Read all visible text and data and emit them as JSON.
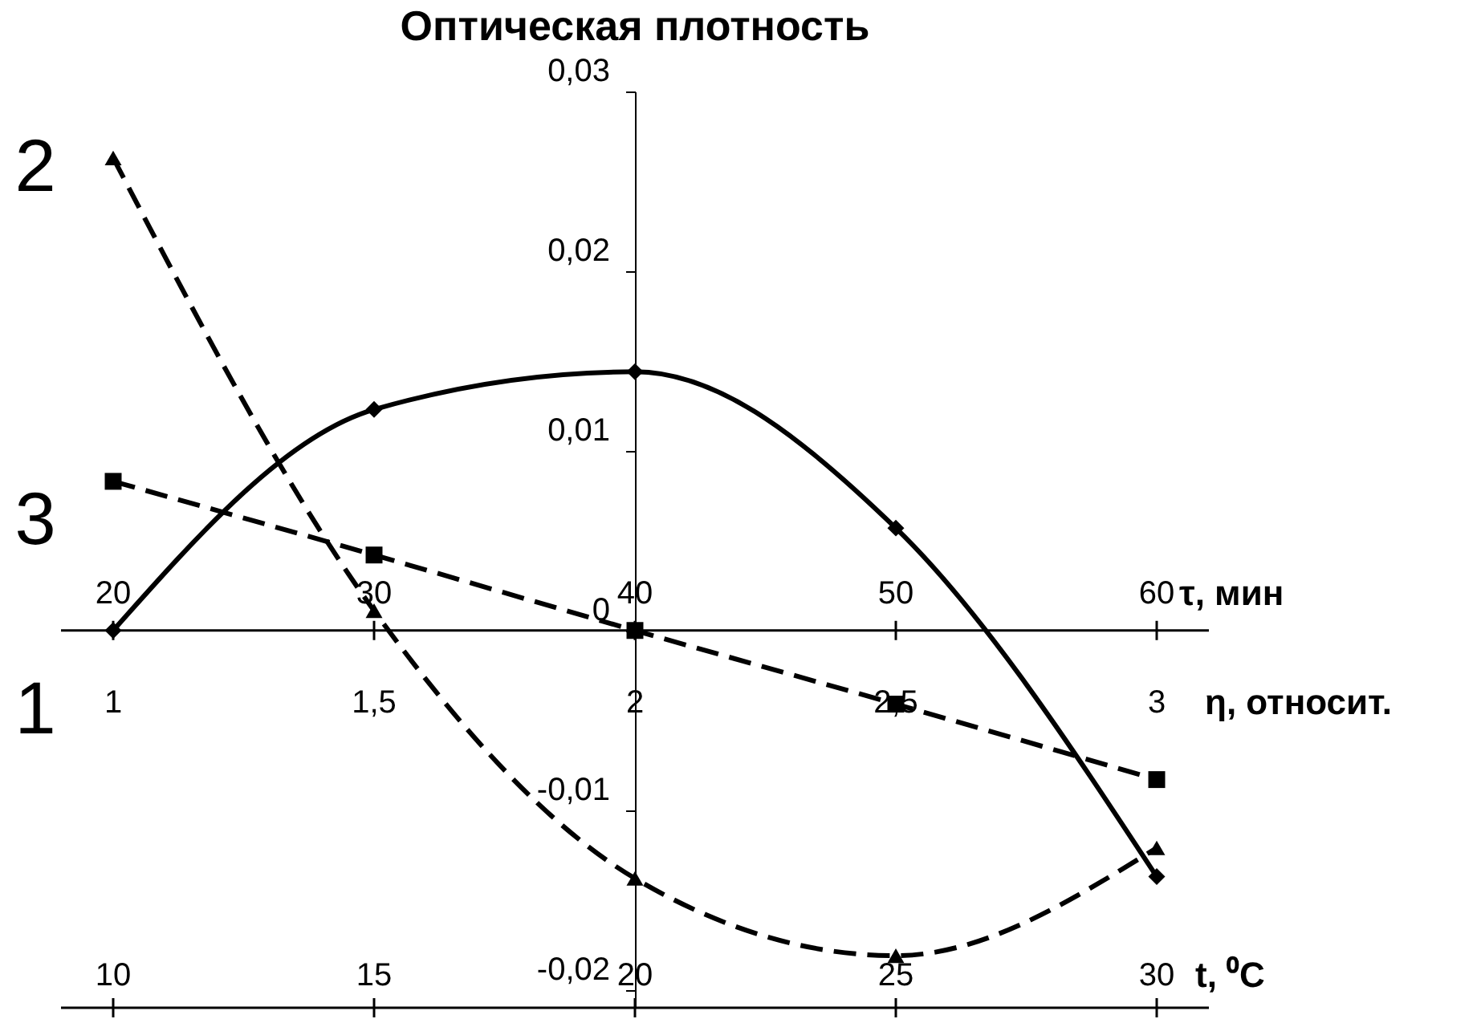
{
  "chart_data": {
    "type": "line",
    "title": "Оптическая плотность",
    "x": [
      10,
      15,
      20,
      25,
      30
    ],
    "xlim": [
      9,
      31
    ],
    "xticks": [
      10,
      15,
      20,
      25,
      30
    ],
    "xlabel": "t, ⁰C",
    "x2lim": [
      18,
      62
    ],
    "x2ticks": [
      20,
      30,
      40,
      50,
      60
    ],
    "x2label": "τ, мин",
    "ylim": [
      -0.021,
      0.03
    ],
    "yticks": [
      {
        "value": 0.03,
        "label": "0,03"
      },
      {
        "value": 0.02,
        "label": "0,02"
      },
      {
        "value": 0.01,
        "label": "0,01"
      },
      0,
      {
        "value": -0.01,
        "label": "-0,01"
      },
      {
        "value": -0.02,
        "label": "-0,02"
      }
    ],
    "series": [
      {
        "color": "#000000",
        "marker": "diamond",
        "line_style": "solid",
        "values": [
          0,
          0.0123,
          0.0144,
          0.0057,
          -0.0137
        ]
      },
      {
        "color": "#000000",
        "marker": "triangle",
        "line_style": "dashed",
        "values": [
          0.0263,
          0.0011,
          -0.0138,
          -0.0181,
          -0.0121
        ]
      },
      {
        "color": "#000000",
        "marker": "square",
        "line_style": "dashed",
        "values": [
          0.0083,
          0.0042,
          0,
          -0.0041,
          -0.0083
        ]
      }
    ],
    "annotations": [
      "2",
      "3",
      "1",
      "1",
      "1,5",
      "2",
      "2,5",
      "3",
      "η, относит."
    ],
    "grid": false
  }
}
